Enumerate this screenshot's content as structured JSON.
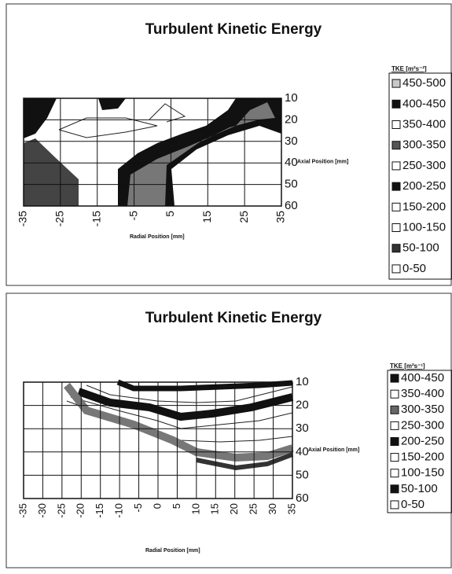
{
  "chart_data": [
    {
      "type": "contour",
      "title": "Turbulent Kinetic Energy",
      "x_label": "Radial Position [mm]",
      "y_label": "Axial Position [mm]",
      "xlim": [
        -35,
        35
      ],
      "xticks": [
        -35,
        -25,
        -15,
        -5,
        5,
        15,
        25,
        35
      ],
      "ylim": [
        10,
        60
      ],
      "yticks": [
        10,
        20,
        30,
        40,
        50,
        60
      ],
      "y_inverted": true,
      "grid": true,
      "legend_title": "TKE [m²s⁻²]",
      "series": [
        {
          "name": "450-500",
          "color": "#c8c8c8"
        },
        {
          "name": "400-450",
          "color": "#111111"
        },
        {
          "name": "350-400",
          "color": "#ffffff"
        },
        {
          "name": "300-350",
          "color": "#555555"
        },
        {
          "name": "250-300",
          "color": "#ffffff"
        },
        {
          "name": "200-250",
          "color": "#111111"
        },
        {
          "name": "150-200",
          "color": "#ffffff"
        },
        {
          "name": "100-150",
          "color": "#ffffff"
        },
        {
          "name": "50-100",
          "color": "#333333"
        },
        {
          "name": "0-50",
          "color": "#ffffff"
        }
      ]
    },
    {
      "type": "contour",
      "title": "Turbulent Kinetic Energy",
      "x_label": "Radial Position [mm]",
      "y_label": "Axial Position [mm]",
      "xlim": [
        -35,
        35
      ],
      "xticks": [
        -35,
        -30,
        -25,
        -20,
        -15,
        -10,
        -5,
        0,
        5,
        10,
        15,
        20,
        25,
        30,
        35
      ],
      "ylim": [
        10,
        60
      ],
      "yticks": [
        10,
        20,
        30,
        40,
        50,
        60
      ],
      "y_inverted": true,
      "grid": true,
      "legend_title": "TKE [m²s⁻¹]",
      "series": [
        {
          "name": "400-450",
          "color": "#111111"
        },
        {
          "name": "350-400",
          "color": "#ffffff"
        },
        {
          "name": "300-350",
          "color": "#666666"
        },
        {
          "name": "250-300",
          "color": "#ffffff"
        },
        {
          "name": "200-250",
          "color": "#111111"
        },
        {
          "name": "150-200",
          "color": "#ffffff"
        },
        {
          "name": "100-150",
          "color": "#ffffff"
        },
        {
          "name": "50-100",
          "color": "#111111"
        },
        {
          "name": "0-50",
          "color": "#ffffff"
        }
      ]
    }
  ]
}
